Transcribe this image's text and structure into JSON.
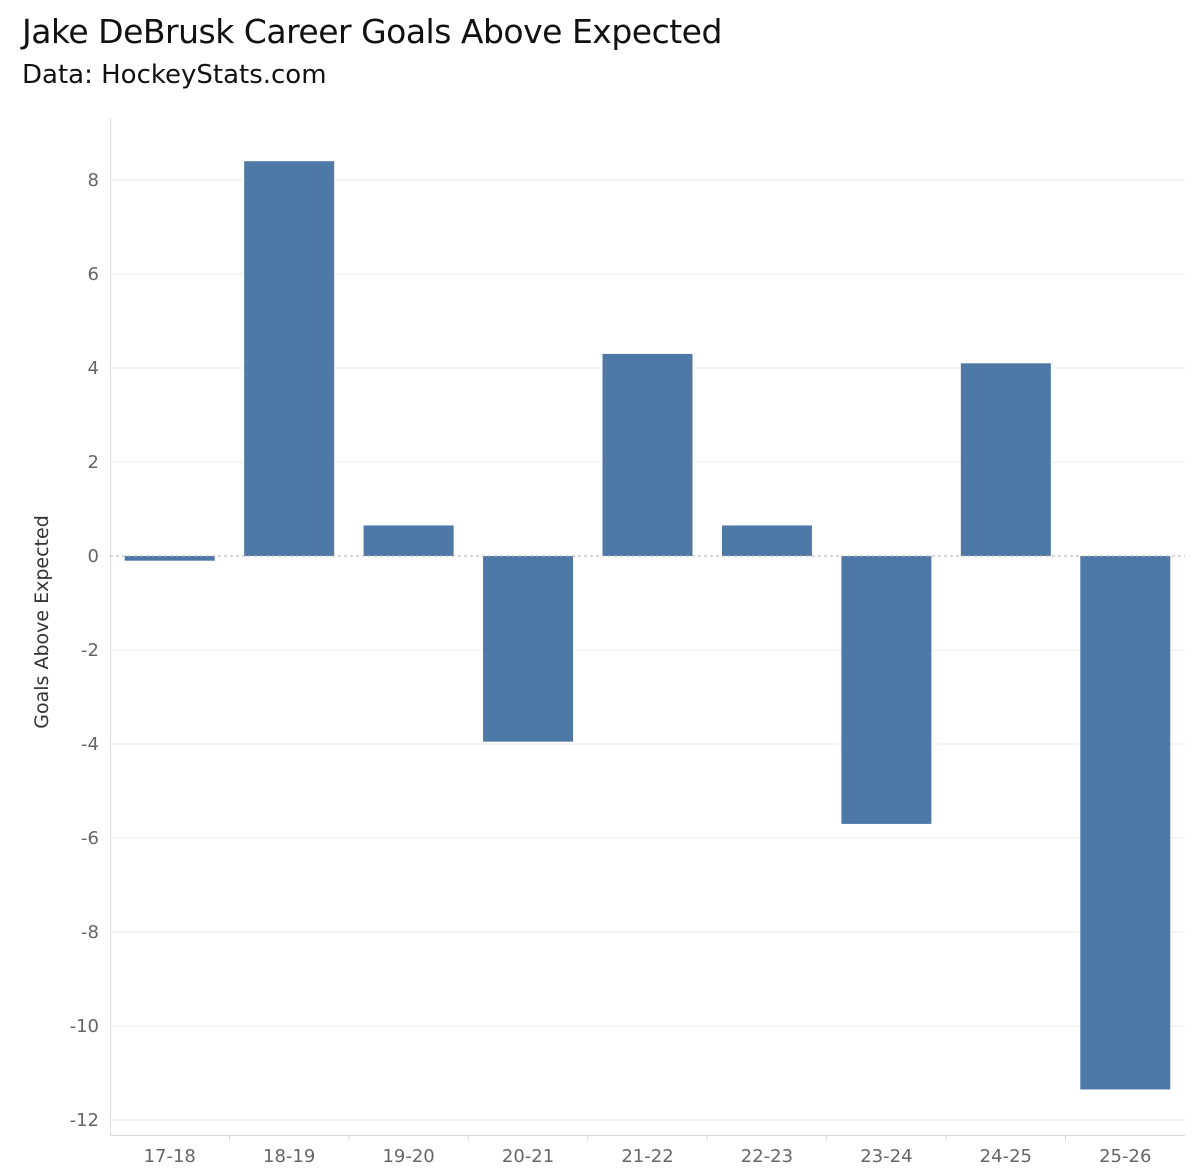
{
  "header": {
    "title": "Jake DeBrusk Career Goals Above Expected",
    "subtitle": "Data: HockeyStats.com"
  },
  "chart_data": {
    "type": "bar",
    "title": "Jake DeBrusk Career Goals Above Expected",
    "subtitle": "Data: HockeyStats.com",
    "xlabel": "",
    "ylabel": "Goals Above Expected",
    "categories": [
      "17-18",
      "18-19",
      "19-20",
      "20-21",
      "21-22",
      "22-23",
      "23-24",
      "24-25",
      "25-26"
    ],
    "values": [
      -0.1,
      8.4,
      0.65,
      -3.95,
      4.3,
      0.65,
      -5.7,
      4.1,
      -11.35
    ],
    "ylim": [
      -12.5,
      9.3
    ],
    "yticks": [
      8,
      6,
      4,
      2,
      0,
      -2,
      -4,
      -6,
      -8,
      -10,
      -12
    ],
    "bar_color": "#4e79a7",
    "grid": true,
    "legend": "none"
  }
}
